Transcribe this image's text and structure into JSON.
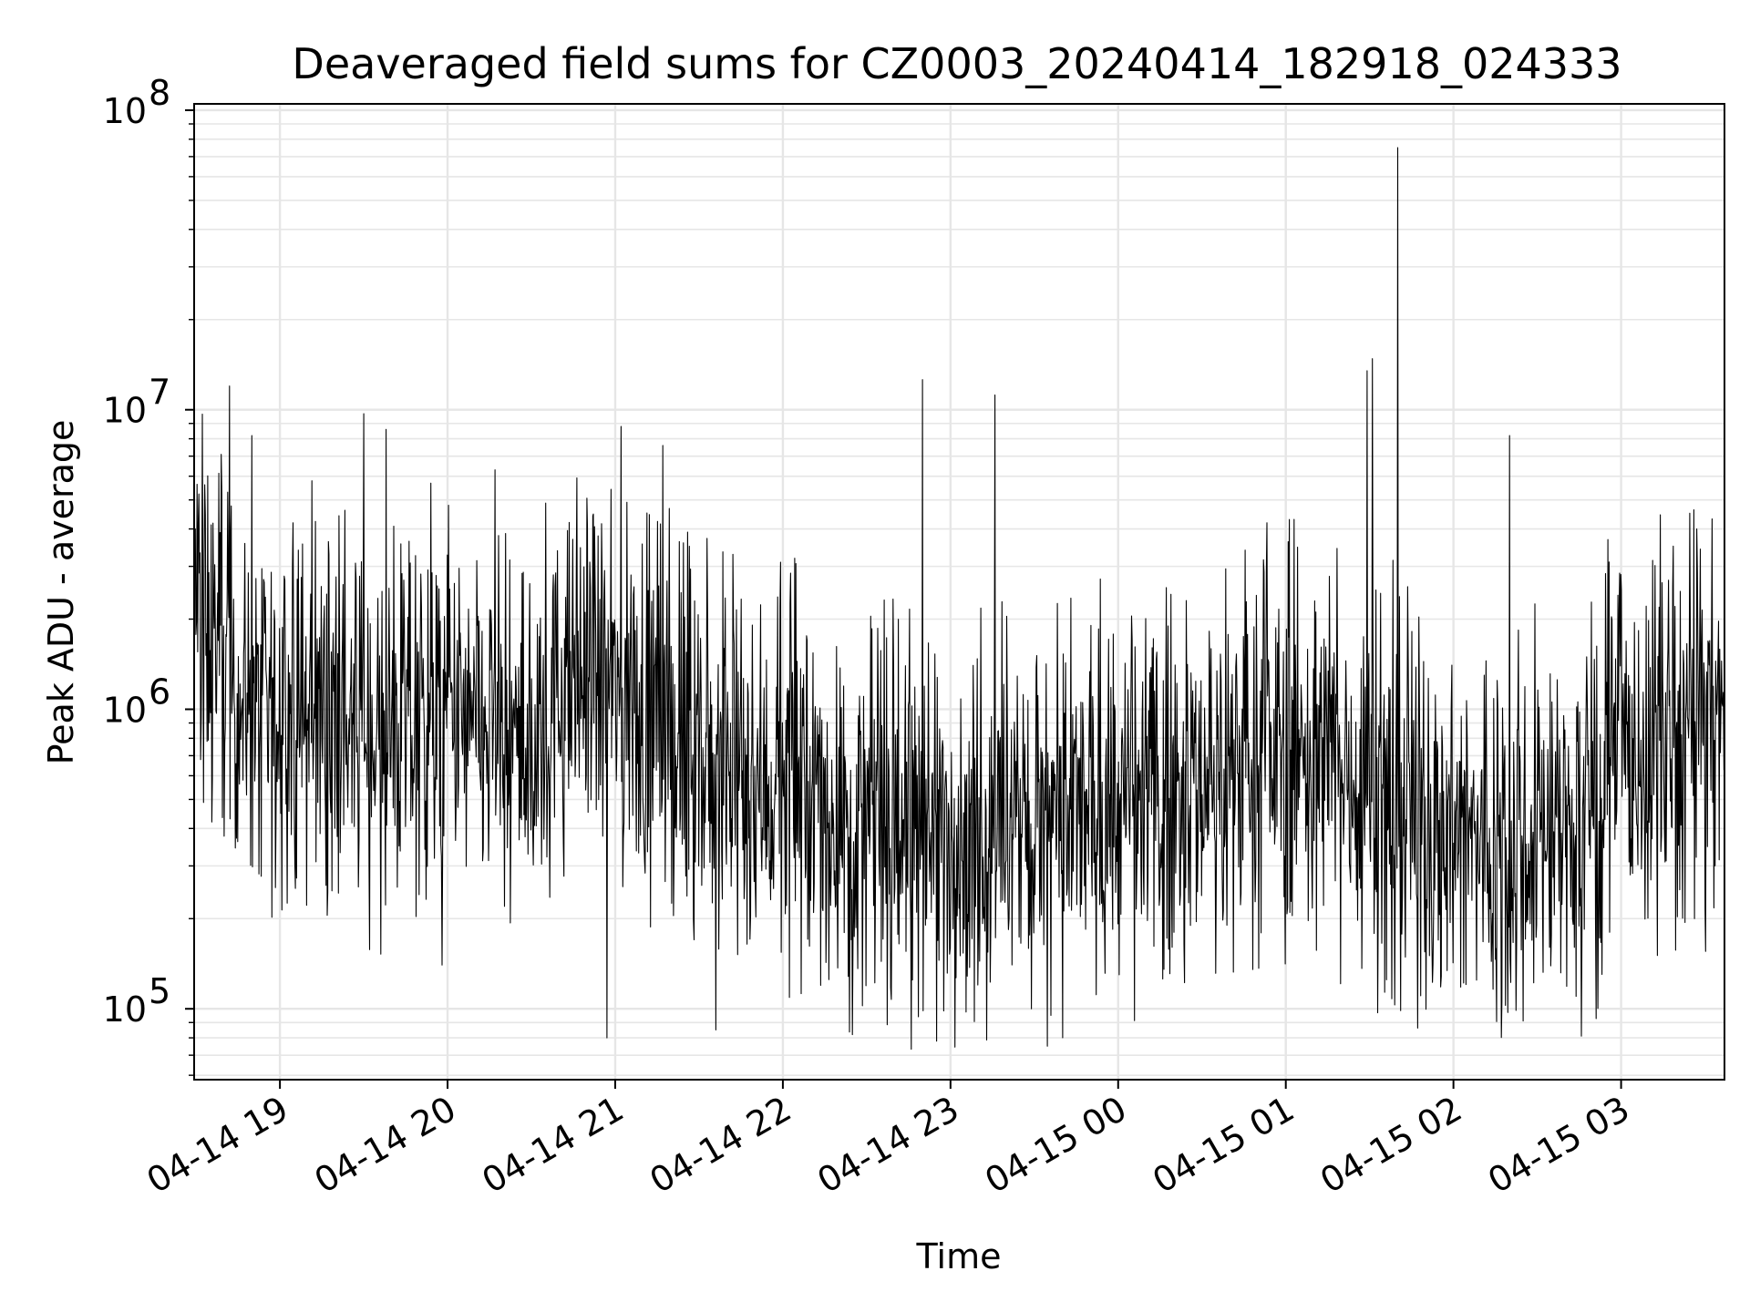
{
  "chart_data": {
    "type": "line",
    "title": "Deaveraged field sums for CZ0003_20240414_182918_024333",
    "xlabel": "Time",
    "ylabel": "Peak ADU - average",
    "yscale": "log",
    "ylim": [
      58000,
      105000000
    ],
    "xlim": [
      "2024-04-14 18:29:18",
      "2024-04-15 03:37:00"
    ],
    "grid": true,
    "line_color": "#000000",
    "grid_color": "#e6e6e6",
    "x_ticks": [
      {
        "t": "2024-04-14 19:00",
        "label": "04-14 19"
      },
      {
        "t": "2024-04-14 20:00",
        "label": "04-14 20"
      },
      {
        "t": "2024-04-14 21:00",
        "label": "04-14 21"
      },
      {
        "t": "2024-04-14 22:00",
        "label": "04-14 22"
      },
      {
        "t": "2024-04-14 23:00",
        "label": "04-14 23"
      },
      {
        "t": "2024-04-15 00:00",
        "label": "04-15 00"
      },
      {
        "t": "2024-04-15 01:00",
        "label": "04-15 01"
      },
      {
        "t": "2024-04-15 02:00",
        "label": "04-15 02"
      },
      {
        "t": "2024-04-15 03:00",
        "label": "04-15 03"
      }
    ],
    "y_ticks": [
      {
        "value": 100000,
        "base": "10",
        "exp": "5"
      },
      {
        "value": 1000000,
        "base": "10",
        "exp": "6"
      },
      {
        "value": 10000000,
        "base": "10",
        "exp": "7"
      },
      {
        "value": 100000000,
        "base": "10",
        "exp": "8"
      }
    ],
    "series": [
      {
        "x": [
          "2024-04-14 18:30",
          "2024-04-14 18:40",
          "2024-04-14 18:50",
          "2024-04-14 19:00",
          "2024-04-14 19:10",
          "2024-04-14 19:20",
          "2024-04-14 19:30",
          "2024-04-14 19:40",
          "2024-04-14 19:50",
          "2024-04-14 20:00",
          "2024-04-14 20:10",
          "2024-04-14 20:20",
          "2024-04-14 20:30",
          "2024-04-14 20:40",
          "2024-04-14 20:50",
          "2024-04-14 21:00",
          "2024-04-14 21:10",
          "2024-04-14 21:20",
          "2024-04-14 21:30",
          "2024-04-14 21:40",
          "2024-04-14 21:50",
          "2024-04-14 22:00",
          "2024-04-14 22:10",
          "2024-04-14 22:20",
          "2024-04-14 22:30",
          "2024-04-14 22:40",
          "2024-04-14 22:50",
          "2024-04-14 23:00",
          "2024-04-14 23:10",
          "2024-04-14 23:20",
          "2024-04-14 23:30",
          "2024-04-14 23:40",
          "2024-04-14 23:50",
          "2024-04-15 00:00",
          "2024-04-15 00:10",
          "2024-04-15 00:20",
          "2024-04-15 00:30",
          "2024-04-15 00:40",
          "2024-04-15 00:50",
          "2024-04-15 01:00",
          "2024-04-15 01:10",
          "2024-04-15 01:20",
          "2024-04-15 01:30",
          "2024-04-15 01:40",
          "2024-04-15 01:50",
          "2024-04-15 02:00",
          "2024-04-15 02:10",
          "2024-04-15 02:20",
          "2024-04-15 02:30",
          "2024-04-15 02:40",
          "2024-04-15 02:50",
          "2024-04-15 03:00",
          "2024-04-15 03:10",
          "2024-04-15 03:20",
          "2024-04-15 03:30"
        ],
        "median": [
          2500000,
          1400000,
          1000000,
          900000,
          950000,
          1100000,
          850000,
          800000,
          900000,
          950000,
          800000,
          750000,
          700000,
          1100000,
          1300000,
          1100000,
          1000000,
          800000,
          650000,
          600000,
          550000,
          550000,
          500000,
          450000,
          400000,
          380000,
          420000,
          400000,
          350000,
          380000,
          400000,
          420000,
          450000,
          450000,
          500000,
          550000,
          600000,
          650000,
          700000,
          750000,
          700000,
          650000,
          600000,
          500000,
          450000,
          400000,
          330000,
          350000,
          400000,
          400000,
          500000,
          700000,
          750000,
          800000,
          900000
        ],
        "spikes": [
          {
            "x": "2024-04-14 18:42",
            "y": 12000000
          },
          {
            "x": "2024-04-14 18:50",
            "y": 8200000
          },
          {
            "x": "2024-04-14 19:30",
            "y": 9700000
          },
          {
            "x": "2024-04-14 19:38",
            "y": 8600000
          },
          {
            "x": "2024-04-14 19:58",
            "y": 7500000
          },
          {
            "x": "2024-04-14 20:17",
            "y": 6300000
          },
          {
            "x": "2024-04-14 21:02",
            "y": 8800000
          },
          {
            "x": "2024-04-14 21:17",
            "y": 7600000
          },
          {
            "x": "2024-04-14 22:50",
            "y": 12600000
          },
          {
            "x": "2024-04-14 23:16",
            "y": 11200000
          },
          {
            "x": "2024-04-15 01:29",
            "y": 13500000
          },
          {
            "x": "2024-04-15 01:31",
            "y": 14800000
          },
          {
            "x": "2024-04-15 01:40",
            "y": 75000000
          },
          {
            "x": "2024-04-15 02:20",
            "y": 8200000
          },
          {
            "x": "2024-04-14 19:58",
            "y": 140000
          },
          {
            "x": "2024-04-14 20:57",
            "y": 80000
          },
          {
            "x": "2024-04-14 21:36",
            "y": 85000
          },
          {
            "x": "2024-04-14 22:25",
            "y": 82000
          },
          {
            "x": "2024-04-14 22:55",
            "y": 78000
          },
          {
            "x": "2024-04-14 23:36",
            "y": 95000
          },
          {
            "x": "2024-04-15 01:38",
            "y": 108000
          },
          {
            "x": "2024-04-15 02:44",
            "y": 110000
          }
        ]
      }
    ]
  }
}
